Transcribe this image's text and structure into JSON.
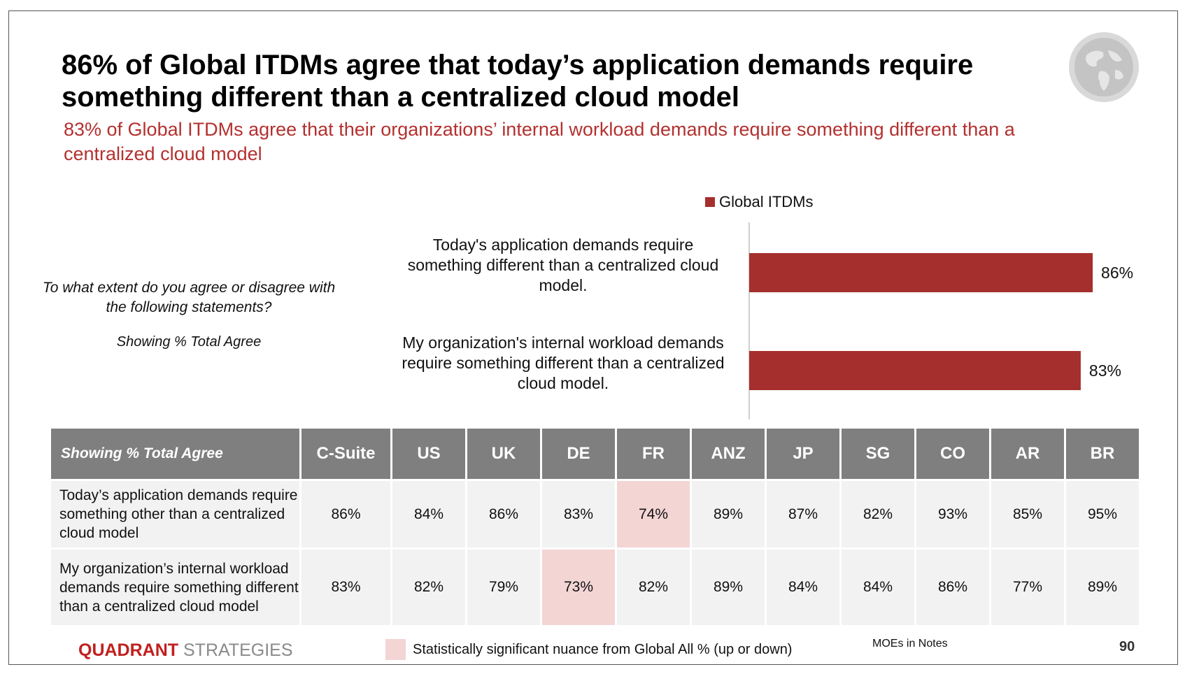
{
  "title": "86% of Global ITDMs agree that today’s application demands require something different than a centralized cloud model",
  "subtitle": "83% of Global ITDMs agree that their organizations’ internal workload demands require something different than a centralized cloud model",
  "question": "To what extent do you agree or disagree with the following statements?",
  "showing_note": "Showing % Total Agree",
  "colors": {
    "accent": "#b3312f",
    "bar": "#a52f2d",
    "header": "#7f7f7f",
    "highlight": "#f3d5d4",
    "cell": "#f2f2f2"
  },
  "chart_data": {
    "type": "bar",
    "orientation": "horizontal",
    "title": "",
    "legend": [
      "Global ITDMs"
    ],
    "categories": [
      "Today's application demands require something different than a centralized cloud model.",
      "My organization's internal workload demands require something different than a centralized cloud model."
    ],
    "series": [
      {
        "name": "Global ITDMs",
        "values": [
          86,
          83
        ]
      }
    ],
    "value_labels": [
      "86%",
      "83%"
    ],
    "xlim": [
      0,
      100
    ],
    "xlabel": "",
    "ylabel": "",
    "grid": false
  },
  "table": {
    "corner_header": "Showing % Total Agree",
    "columns": [
      "C-Suite",
      "US",
      "UK",
      "DE",
      "FR",
      "ANZ",
      "JP",
      "SG",
      "CO",
      "AR",
      "BR"
    ],
    "rows": [
      {
        "label": "Today’s application demands require something other than a centralized cloud model",
        "values": [
          "86%",
          "84%",
          "86%",
          "83%",
          "74%",
          "89%",
          "87%",
          "82%",
          "93%",
          "85%",
          "95%"
        ],
        "highlight": [
          false,
          false,
          false,
          false,
          true,
          false,
          false,
          false,
          false,
          false,
          false
        ]
      },
      {
        "label": "My organization’s internal workload demands require something different than a centralized cloud model",
        "values": [
          "83%",
          "82%",
          "79%",
          "73%",
          "82%",
          "89%",
          "84%",
          "84%",
          "86%",
          "77%",
          "89%"
        ],
        "highlight": [
          false,
          false,
          false,
          true,
          false,
          false,
          false,
          false,
          false,
          false,
          false
        ]
      }
    ]
  },
  "footer": {
    "brand_part1": "QUADRANT",
    "brand_part2": " STRATEGIES",
    "significance_note": "Statistically significant nuance from Global All % (up or down)",
    "moes": "MOEs in Notes",
    "page_number": "90"
  },
  "icons": {
    "globe": "globe-icon"
  }
}
